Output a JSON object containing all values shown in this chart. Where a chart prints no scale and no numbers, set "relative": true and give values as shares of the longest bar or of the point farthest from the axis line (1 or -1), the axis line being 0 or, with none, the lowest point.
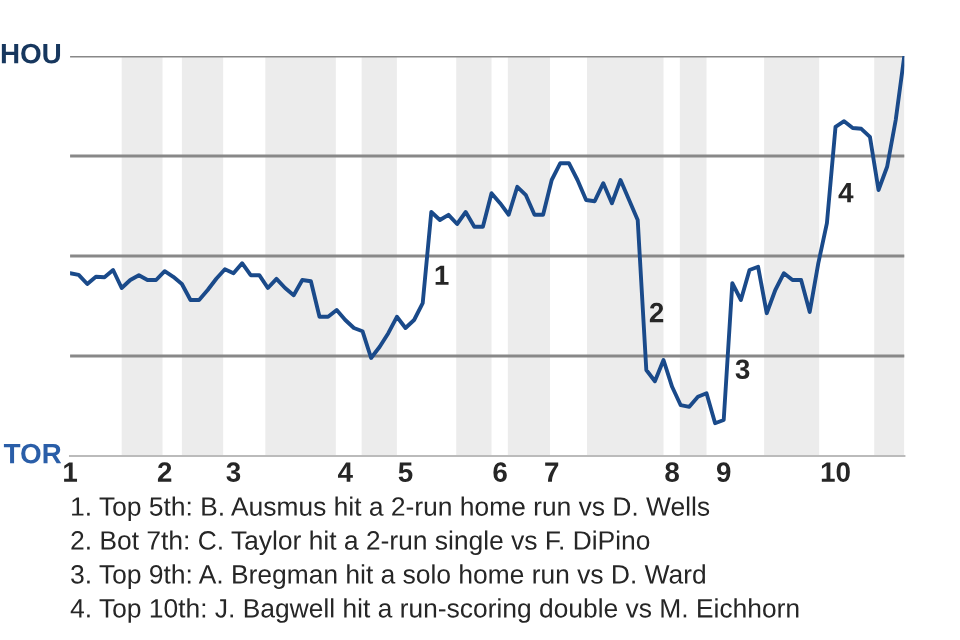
{
  "chart_data": {
    "type": "line",
    "relative": true,
    "categories": [
      "1",
      null,
      null,
      null,
      null,
      null,
      null,
      null,
      null,
      null,
      null,
      "2",
      null,
      null,
      null,
      null,
      null,
      null,
      null,
      "3",
      null,
      null,
      null,
      null,
      null,
      null,
      null,
      null,
      null,
      null,
      null,
      null,
      "4",
      null,
      null,
      null,
      null,
      null,
      null,
      "5",
      null,
      null,
      null,
      null,
      null,
      null,
      null,
      null,
      null,
      null,
      "6",
      null,
      null,
      null,
      null,
      null,
      "7",
      null,
      null,
      null,
      null,
      null,
      null,
      null,
      null,
      null,
      null,
      null,
      null,
      null,
      "8",
      null,
      null,
      null,
      null,
      null,
      "9",
      null,
      null,
      null,
      null,
      null,
      null,
      null,
      null,
      null,
      null,
      null,
      null,
      "10",
      null,
      null,
      null,
      null,
      null,
      null,
      null,
      null
    ],
    "series": [
      {
        "color": "#1a4a8a",
        "values": [
          0.457,
          0.453,
          0.43,
          0.448,
          0.447,
          0.465,
          0.42,
          0.44,
          0.452,
          0.44,
          0.44,
          0.462,
          0.448,
          0.43,
          0.39,
          0.39,
          0.415,
          0.443,
          0.467,
          0.457,
          0.482,
          0.452,
          0.452,
          0.42,
          0.443,
          0.42,
          0.402,
          0.44,
          0.437,
          0.348,
          0.348,
          0.365,
          0.34,
          0.32,
          0.312,
          0.245,
          0.273,
          0.307,
          0.348,
          0.32,
          0.34,
          0.382,
          0.61,
          0.59,
          0.603,
          0.58,
          0.61,
          0.573,
          0.573,
          0.657,
          0.632,
          0.603,
          0.673,
          0.652,
          0.603,
          0.603,
          0.69,
          0.732,
          0.732,
          0.69,
          0.64,
          0.637,
          0.682,
          0.632,
          0.69,
          0.64,
          0.59,
          0.215,
          0.187,
          0.24,
          0.173,
          0.127,
          0.123,
          0.148,
          0.157,
          0.082,
          0.09,
          0.432,
          0.39,
          0.465,
          0.473,
          0.357,
          0.415,
          0.457,
          0.44,
          0.44,
          0.36,
          0.482,
          0.582,
          0.823,
          0.837,
          0.82,
          0.818,
          0.798,
          0.665,
          0.723,
          0.84,
          1
        ]
      }
    ],
    "grid": "y",
    "annotations": [
      "HOU",
      "TOR",
      {
        "text": "1"
      },
      {
        "text": "2"
      },
      {
        "text": "3"
      },
      {
        "text": "4"
      },
      "1. Top 5th: B. Ausmus hit a 2-run home run vs D. Wells",
      "2. Bot 7th: C. Taylor hit a 2-run single vs F. DiPino",
      "3. Top 9th: A. Bregman hit a solo home run vs D. Ward",
      "4. Top 10th: J. Bagwell hit a run-scoring double vs M. Eichhorn"
    ]
  }
}
